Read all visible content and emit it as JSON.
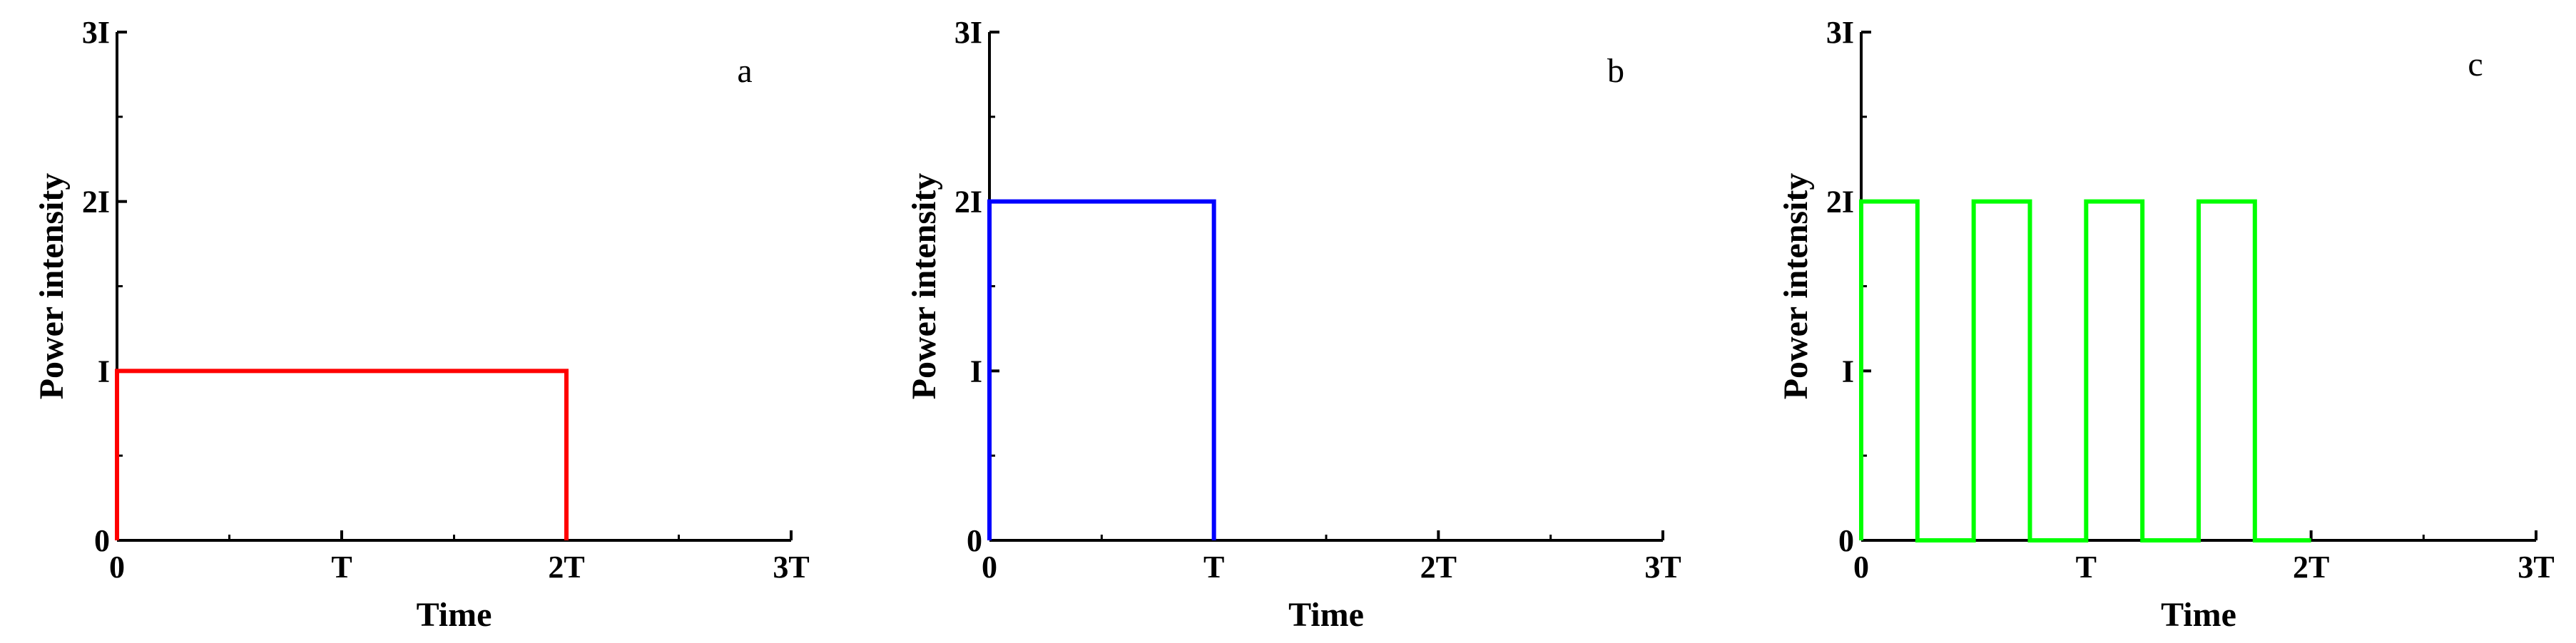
{
  "chart_data": [
    {
      "type": "line",
      "panel_label": "a",
      "xlabel": "Time",
      "ylabel": "Power intensity",
      "xlim": [
        0,
        3
      ],
      "ylim": [
        0,
        3
      ],
      "x_ticks": [
        0,
        1,
        2,
        3
      ],
      "x_tick_labels": [
        "0",
        "T",
        "2T",
        "3T"
      ],
      "y_ticks": [
        0,
        1,
        2,
        3
      ],
      "y_tick_labels": [
        "0",
        "I",
        "2I",
        "3I"
      ],
      "x_minor_ticks": [
        0.5,
        1.5,
        2.5
      ],
      "y_minor_ticks": [
        0.5,
        1.5,
        2.5
      ],
      "grid": false,
      "series": [
        {
          "color": "#ff0000",
          "x": [
            0,
            0,
            2,
            2
          ],
          "y": [
            0,
            1,
            1,
            0
          ]
        }
      ]
    },
    {
      "type": "line",
      "panel_label": "b",
      "xlabel": "Time",
      "ylabel": "Power intensity",
      "xlim": [
        0,
        3
      ],
      "ylim": [
        0,
        3
      ],
      "x_ticks": [
        0,
        1,
        2,
        3
      ],
      "x_tick_labels": [
        "0",
        "T",
        "2T",
        "3T"
      ],
      "y_ticks": [
        0,
        1,
        2,
        3
      ],
      "y_tick_labels": [
        "0",
        "I",
        "2I",
        "3I"
      ],
      "x_minor_ticks": [
        0.5,
        1.5,
        2.5
      ],
      "y_minor_ticks": [
        0.5,
        1.5,
        2.5
      ],
      "grid": false,
      "series": [
        {
          "color": "#0000ff",
          "x": [
            0,
            0,
            1,
            1
          ],
          "y": [
            0,
            2,
            2,
            0
          ]
        }
      ]
    },
    {
      "type": "line",
      "panel_label": "c",
      "xlabel": "Time",
      "ylabel": "Power intensity",
      "xlim": [
        0,
        3
      ],
      "ylim": [
        0,
        3
      ],
      "x_ticks": [
        0,
        1,
        2,
        3
      ],
      "x_tick_labels": [
        "0",
        "T",
        "2T",
        "3T"
      ],
      "y_ticks": [
        0,
        1,
        2,
        3
      ],
      "y_tick_labels": [
        "0",
        "I",
        "2I",
        "3I"
      ],
      "x_minor_ticks": [
        0.5,
        1.5,
        2.5
      ],
      "y_minor_ticks": [
        0.5,
        1.5,
        2.5
      ],
      "grid": false,
      "series": [
        {
          "color": "#00ff00",
          "x": [
            0,
            0,
            0.25,
            0.25,
            0.5,
            0.5,
            0.75,
            0.75,
            1,
            1,
            1.25,
            1.25,
            1.5,
            1.5,
            1.75,
            1.75,
            2
          ],
          "y": [
            0,
            2,
            2,
            0,
            0,
            2,
            2,
            0,
            0,
            2,
            2,
            0,
            0,
            2,
            2,
            0,
            0
          ]
        }
      ]
    }
  ]
}
